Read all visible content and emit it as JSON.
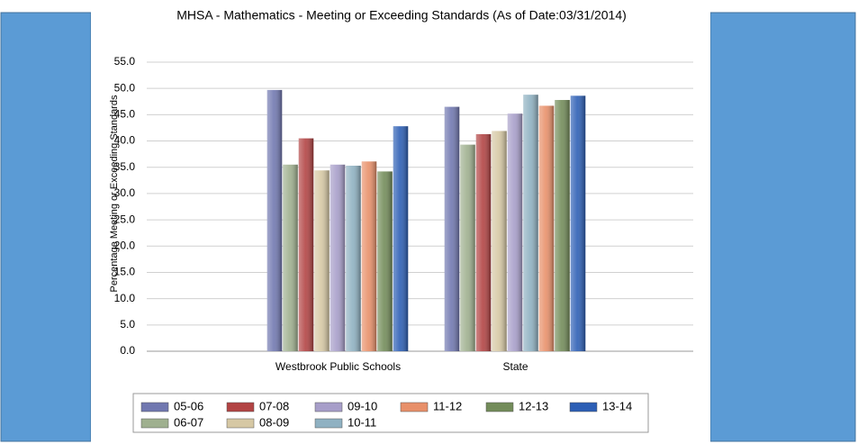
{
  "chart_data": {
    "type": "bar",
    "title": "MHSA - Mathematics - Meeting or Exceeding Standards (As of Date:03/31/2014)",
    "y_label": "Percentage Meeting or Exceeding Standards",
    "categories": [
      "Westbrook Public Schools",
      "State"
    ],
    "series": [
      {
        "name": "05-06",
        "color": "#7178b0",
        "values": [
          49.7,
          46.5
        ]
      },
      {
        "name": "06-07",
        "color": "#9fb08f",
        "values": [
          35.5,
          39.3
        ]
      },
      {
        "name": "07-08",
        "color": "#b24444",
        "values": [
          40.5,
          41.3
        ]
      },
      {
        "name": "08-09",
        "color": "#d6c8a4",
        "values": [
          34.4,
          41.9
        ]
      },
      {
        "name": "09-10",
        "color": "#a79ec9",
        "values": [
          35.5,
          45.2
        ]
      },
      {
        "name": "10-11",
        "color": "#8fb1c2",
        "values": [
          35.3,
          48.8
        ]
      },
      {
        "name": "11-12",
        "color": "#e8906a",
        "values": [
          36.1,
          46.7
        ]
      },
      {
        "name": "12-13",
        "color": "#738c5a",
        "values": [
          34.2,
          47.8
        ]
      },
      {
        "name": "13-14",
        "color": "#2d5fb5",
        "values": [
          42.8,
          48.6
        ]
      }
    ],
    "ylim": [
      0,
      55
    ],
    "yticks": [
      {
        "value": 0,
        "label": "0.0"
      },
      {
        "value": 5,
        "label": "5.0"
      },
      {
        "value": 10,
        "label": "10.0"
      },
      {
        "value": 15,
        "label": "15.0"
      },
      {
        "value": 20,
        "label": "20.0"
      },
      {
        "value": 25,
        "label": "25.0"
      },
      {
        "value": 30,
        "label": "30.0"
      },
      {
        "value": 35,
        "label": "35.0"
      },
      {
        "value": 40,
        "label": "40.0"
      },
      {
        "value": 45,
        "label": "45.0"
      },
      {
        "value": 50,
        "label": "50.0"
      },
      {
        "value": 55,
        "label": "55.0"
      }
    ],
    "grid": true
  }
}
